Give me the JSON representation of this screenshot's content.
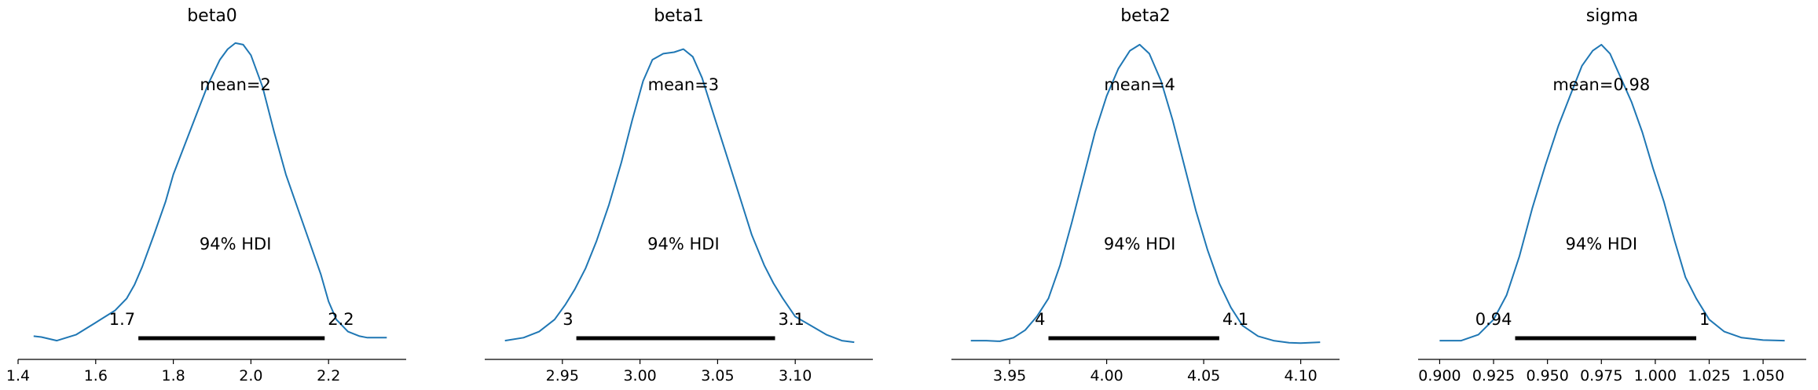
{
  "chart_data": [
    {
      "type": "area",
      "title": "beta0",
      "mean_label": "mean=2",
      "hdi_label": "94% HDI",
      "hdi": {
        "low": 1.71,
        "high": 2.19,
        "low_label": "1.7",
        "high_label": "2.2"
      },
      "xlim": [
        1.4,
        2.4
      ],
      "xticks": [
        1.4,
        1.6,
        1.8,
        2.0,
        2.2
      ],
      "xtick_labels": [
        "1.4",
        "1.6",
        "1.8",
        "2.0",
        "2.2"
      ],
      "grid": false,
      "density": {
        "x": [
          1.44,
          1.46,
          1.5,
          1.55,
          1.6,
          1.65,
          1.68,
          1.7,
          1.72,
          1.75,
          1.78,
          1.8,
          1.83,
          1.86,
          1.89,
          1.92,
          1.94,
          1.96,
          1.98,
          2.0,
          2.03,
          2.06,
          2.09,
          2.12,
          2.15,
          2.18,
          2.2,
          2.22,
          2.25,
          2.28,
          2.3,
          2.35
        ],
        "y": [
          0.025,
          0.022,
          0.01,
          0.03,
          0.07,
          0.11,
          0.15,
          0.195,
          0.255,
          0.36,
          0.47,
          0.56,
          0.66,
          0.76,
          0.86,
          0.94,
          0.975,
          0.995,
          0.99,
          0.955,
          0.85,
          0.7,
          0.56,
          0.45,
          0.34,
          0.23,
          0.14,
          0.08,
          0.04,
          0.025,
          0.02,
          0.02
        ]
      }
    },
    {
      "type": "area",
      "title": "beta1",
      "mean_label": "mean=3",
      "hdi_label": "94% HDI",
      "hdi": {
        "low": 2.959,
        "high": 3.087,
        "low_label": "3",
        "high_label": "3.1"
      },
      "xlim": [
        2.9,
        3.15
      ],
      "xticks": [
        2.95,
        3.0,
        3.05,
        3.1
      ],
      "xtick_labels": [
        "2.95",
        "3.00",
        "3.05",
        "3.10"
      ],
      "grid": false,
      "density": {
        "x": [
          2.913,
          2.925,
          2.935,
          2.945,
          2.952,
          2.958,
          2.965,
          2.972,
          2.98,
          2.988,
          2.995,
          3.002,
          3.008,
          3.015,
          3.022,
          3.028,
          3.034,
          3.04,
          3.048,
          3.056,
          3.064,
          3.072,
          3.08,
          3.086,
          3.092,
          3.1,
          3.11,
          3.12,
          3.13,
          3.138
        ],
        "y": [
          0.01,
          0.02,
          0.04,
          0.08,
          0.13,
          0.18,
          0.25,
          0.34,
          0.46,
          0.6,
          0.74,
          0.87,
          0.94,
          0.96,
          0.965,
          0.975,
          0.95,
          0.88,
          0.75,
          0.62,
          0.49,
          0.36,
          0.26,
          0.2,
          0.15,
          0.09,
          0.06,
          0.03,
          0.01,
          0.005
        ]
      }
    },
    {
      "type": "area",
      "title": "beta2",
      "mean_label": "mean=4",
      "hdi_label": "94% HDI",
      "hdi": {
        "low": 3.97,
        "high": 4.058,
        "low_label": "4",
        "high_label": "4.1"
      },
      "xlim": [
        3.92,
        4.12
      ],
      "xticks": [
        3.95,
        4.0,
        4.05,
        4.1
      ],
      "xtick_labels": [
        "3.95",
        "4.00",
        "4.05",
        "4.10"
      ],
      "grid": false,
      "density": {
        "x": [
          3.93,
          3.938,
          3.945,
          3.952,
          3.958,
          3.964,
          3.97,
          3.976,
          3.982,
          3.988,
          3.994,
          4.0,
          4.006,
          4.012,
          4.017,
          4.022,
          4.028,
          4.034,
          4.04,
          4.046,
          4.052,
          4.058,
          4.064,
          4.07,
          4.078,
          4.086,
          4.094,
          4.1,
          4.11
        ],
        "y": [
          0.01,
          0.01,
          0.008,
          0.02,
          0.045,
          0.09,
          0.15,
          0.26,
          0.4,
          0.55,
          0.7,
          0.82,
          0.91,
          0.97,
          0.99,
          0.96,
          0.87,
          0.74,
          0.59,
          0.44,
          0.31,
          0.2,
          0.12,
          0.06,
          0.025,
          0.01,
          0.003,
          0.002,
          0.005
        ]
      }
    },
    {
      "type": "area",
      "title": "sigma",
      "mean_label": "mean=0.98",
      "hdi_label": "94% HDI",
      "hdi": {
        "low": 0.935,
        "high": 1.019,
        "low_label": "0.94",
        "high_label": "1"
      },
      "xlim": [
        0.89,
        1.07
      ],
      "xticks": [
        0.9,
        0.925,
        0.95,
        0.975,
        1.0,
        1.025,
        1.05
      ],
      "xtick_labels": [
        "0.900",
        "0.925",
        "0.950",
        "0.975",
        "1.000",
        "1.025",
        "1.050"
      ],
      "grid": false,
      "density": {
        "x": [
          0.9,
          0.91,
          0.918,
          0.925,
          0.931,
          0.937,
          0.943,
          0.949,
          0.955,
          0.961,
          0.966,
          0.971,
          0.975,
          0.979,
          0.984,
          0.989,
          0.994,
          0.999,
          1.004,
          1.009,
          1.014,
          1.019,
          1.025,
          1.032,
          1.04,
          1.05,
          1.06
        ],
        "y": [
          0.01,
          0.01,
          0.03,
          0.08,
          0.16,
          0.29,
          0.45,
          0.59,
          0.72,
          0.83,
          0.92,
          0.97,
          0.99,
          0.96,
          0.88,
          0.8,
          0.7,
          0.58,
          0.47,
          0.34,
          0.22,
          0.15,
          0.08,
          0.04,
          0.02,
          0.012,
          0.01
        ]
      }
    }
  ],
  "colors": {
    "density_line": "#1f77b4",
    "hdi_bar": "#000000",
    "axis": "#000000"
  }
}
